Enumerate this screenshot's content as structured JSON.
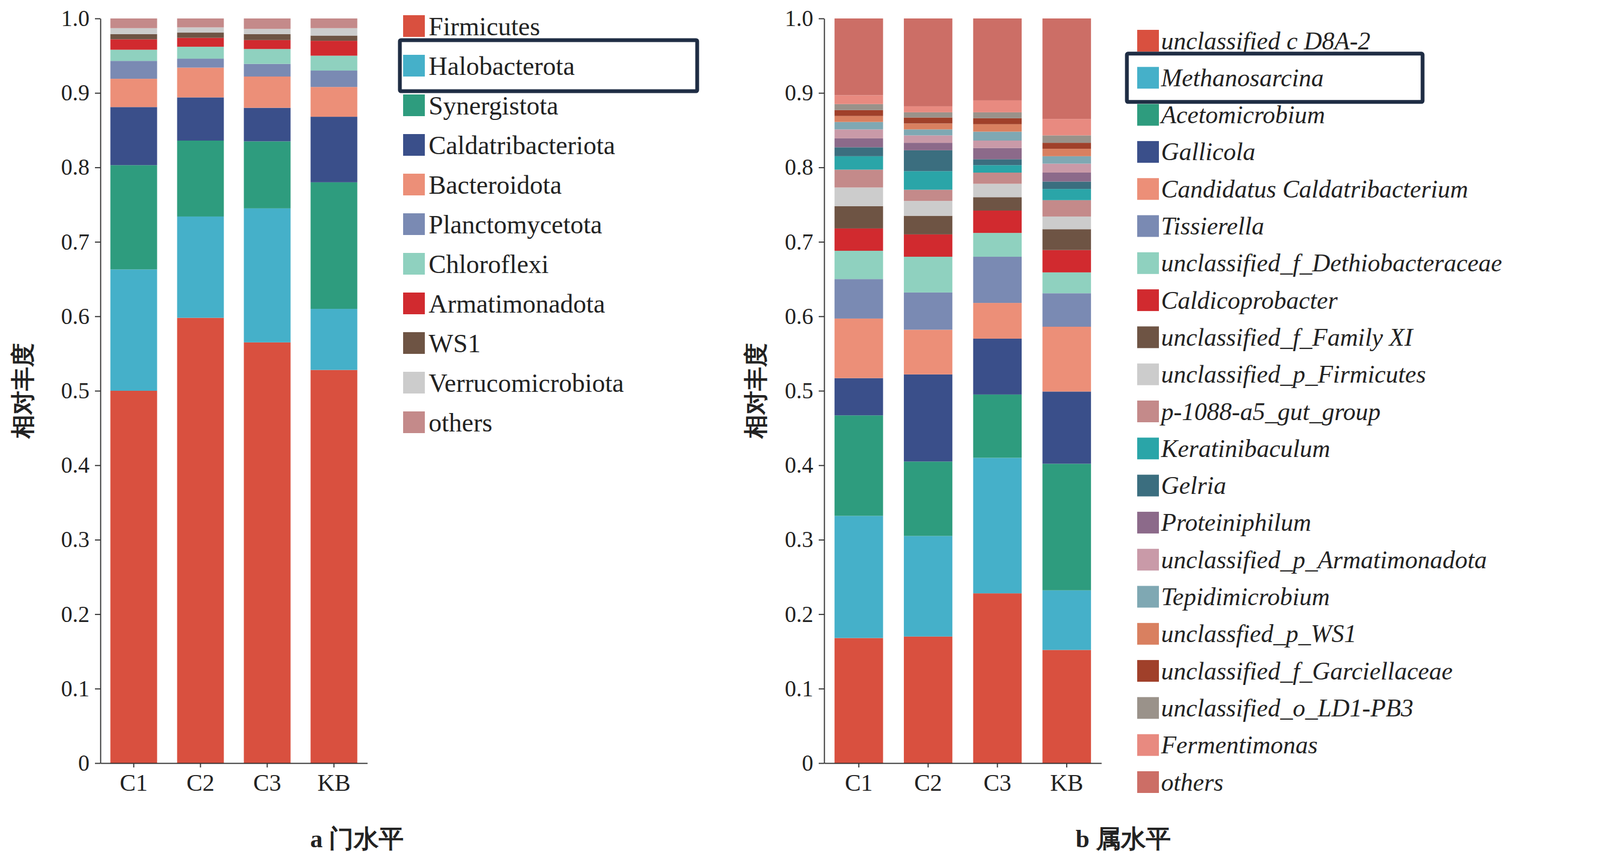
{
  "chart_data": [
    {
      "type": "bar",
      "stacked": true,
      "title": "a 门水平",
      "y_label": "相对丰度",
      "legend": "right",
      "categories": [
        "C1",
        "C2",
        "C3",
        "KB"
      ],
      "ylim": [
        0,
        1
      ],
      "yticks": [
        0,
        0.1,
        0.2,
        0.3,
        0.4,
        0.5,
        0.6,
        0.7,
        0.8,
        0.9,
        {
          "value": 1,
          "label": "1.0"
        }
      ],
      "series": [
        {
          "name": "Firmicutes",
          "color": "#d9503f",
          "values": [
            0.5,
            0.598,
            0.565,
            0.528
          ]
        },
        {
          "name": "Halobacterota",
          "color": "#45b0c9",
          "values": [
            0.163,
            0.136,
            0.18,
            0.082
          ]
        },
        {
          "name": "Synergistota",
          "color": "#2e9c7e",
          "values": [
            0.14,
            0.102,
            0.09,
            0.17
          ]
        },
        {
          "name": "Caldatribacteriota",
          "color": "#3a4f8a",
          "values": [
            0.078,
            0.058,
            0.045,
            0.088
          ]
        },
        {
          "name": "Bacteroidota",
          "color": "#ec8f78",
          "values": [
            0.038,
            0.04,
            0.042,
            0.04
          ]
        },
        {
          "name": "Planctomycetota",
          "color": "#7a8ab3",
          "values": [
            0.024,
            0.012,
            0.017,
            0.022
          ]
        },
        {
          "name": "Chloroflexi",
          "color": "#8fd1bf",
          "values": [
            0.015,
            0.016,
            0.02,
            0.02
          ]
        },
        {
          "name": "Armatimonadota",
          "color": "#d12a2f",
          "values": [
            0.014,
            0.012,
            0.012,
            0.02
          ]
        },
        {
          "name": "WS1",
          "color": "#6e5444",
          "values": [
            0.007,
            0.007,
            0.008,
            0.007
          ]
        },
        {
          "name": "Verrucomicrobiota",
          "color": "#cccccc",
          "values": [
            0.008,
            0.007,
            0.007,
            0.01
          ]
        },
        {
          "name": "others",
          "color": "#c48a8a",
          "values": [
            0.013,
            0.012,
            0.014,
            0.013
          ]
        }
      ]
    },
    {
      "type": "bar",
      "stacked": true,
      "title": "b 属水平",
      "y_label": "相对丰度",
      "legend": "right",
      "categories": [
        "C1",
        "C2",
        "C3",
        "KB"
      ],
      "ylim": [
        0,
        1
      ],
      "yticks": [
        0,
        0.1,
        0.2,
        0.3,
        0.4,
        0.5,
        0.6,
        0.7,
        0.8,
        0.9,
        {
          "value": 1,
          "label": "1.0"
        }
      ],
      "series": [
        {
          "name": "unclassified c D8A-2",
          "color": "#d9503f",
          "values": [
            0.168,
            0.17,
            0.228,
            0.152
          ]
        },
        {
          "name": "Methanosarcina",
          "color": "#45b0c9",
          "values": [
            0.164,
            0.135,
            0.182,
            0.08
          ]
        },
        {
          "name": "Acetomicrobium",
          "color": "#2e9c7e",
          "values": [
            0.135,
            0.1,
            0.085,
            0.17
          ]
        },
        {
          "name": "Gallicola",
          "color": "#3a4f8a",
          "values": [
            0.05,
            0.117,
            0.075,
            0.097
          ]
        },
        {
          "name": "Candidatus Caldatribacterium",
          "color": "#ec8f78",
          "values": [
            0.08,
            0.06,
            0.048,
            0.087
          ]
        },
        {
          "name": "Tissierella",
          "color": "#7a8ab3",
          "values": [
            0.053,
            0.05,
            0.062,
            0.045
          ]
        },
        {
          "name": "unclassified_f_Dethiobacteraceae",
          "color": "#8fd1bf",
          "values": [
            0.038,
            0.048,
            0.032,
            0.028
          ]
        },
        {
          "name": "Caldicoprobacter",
          "color": "#d12a2f",
          "values": [
            0.03,
            0.03,
            0.03,
            0.03
          ]
        },
        {
          "name": "unclassified_f_Family XI",
          "color": "#6e5444",
          "values": [
            0.03,
            0.025,
            0.018,
            0.028
          ]
        },
        {
          "name": "unclassified_p_Firmicutes",
          "color": "#cccccc",
          "values": [
            0.025,
            0.02,
            0.018,
            0.017
          ]
        },
        {
          "name": "p-1088-a5_gut_group",
          "color": "#c48a8a",
          "values": [
            0.024,
            0.015,
            0.015,
            0.022
          ]
        },
        {
          "name": "Keratinibaculum",
          "color": "#2aa5a8",
          "values": [
            0.018,
            0.025,
            0.01,
            0.015
          ]
        },
        {
          "name": "Gelria",
          "color": "#3b6e7f",
          "values": [
            0.012,
            0.028,
            0.008,
            0.01
          ]
        },
        {
          "name": "Proteiniphilum",
          "color": "#8c6a8a",
          "values": [
            0.012,
            0.01,
            0.015,
            0.012
          ]
        },
        {
          "name": "unclassified_p_Armatimonadota",
          "color": "#c99aa8",
          "values": [
            0.012,
            0.01,
            0.01,
            0.012
          ]
        },
        {
          "name": "Tepidimicrobium",
          "color": "#7fa8b3",
          "values": [
            0.01,
            0.008,
            0.012,
            0.01
          ]
        },
        {
          "name": "unclassfied_p_WS1",
          "color": "#d98060",
          "values": [
            0.008,
            0.008,
            0.01,
            0.01
          ]
        },
        {
          "name": "unclassified_f_Garciellaceae",
          "color": "#a0402a",
          "values": [
            0.008,
            0.008,
            0.008,
            0.008
          ]
        },
        {
          "name": "unclassified_o_LD1-PB3",
          "color": "#9a928a",
          "values": [
            0.008,
            0.007,
            0.008,
            0.01
          ]
        },
        {
          "name": "Fermentimonas",
          "color": "#e88a80",
          "values": [
            0.012,
            0.008,
            0.016,
            0.022
          ]
        },
        {
          "name": "others",
          "color": "#cc6e66",
          "values": [
            0.103,
            0.118,
            0.11,
            0.135
          ]
        }
      ]
    }
  ]
}
